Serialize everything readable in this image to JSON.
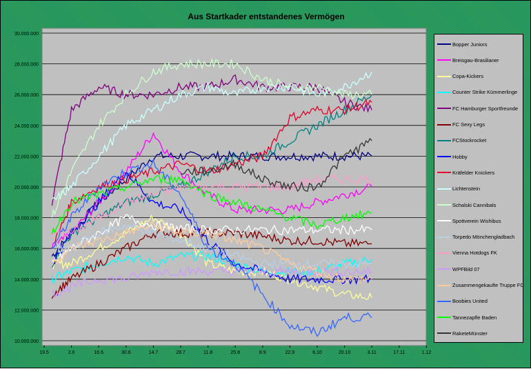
{
  "chart_data": {
    "type": "line",
    "title": "Aus Startkader entstandenes Vermögen",
    "xlabel": "",
    "ylabel": "",
    "ylim": [
      10000000,
      30000000
    ],
    "y_ticks": [
      "10.000.000",
      "12.000.000",
      "14.000.000",
      "16.000.000",
      "18.000.000",
      "20.000.000",
      "22.000.000",
      "24.000.000",
      "26.000.000",
      "28.000.000",
      "30.000.000"
    ],
    "x_ticks": [
      "19.5",
      "2.6",
      "16.6",
      "30.6",
      "14.7",
      "28.7",
      "11.8",
      "25.8",
      "8.9",
      "22.9",
      "6.10",
      "20.10",
      "3.11",
      "17.11",
      "1.12"
    ],
    "x_days": [
      4,
      14,
      28,
      42,
      56,
      70,
      84,
      98,
      112,
      126,
      140,
      154,
      168
    ],
    "grid": true,
    "legend_position": "right",
    "series": [
      {
        "name": "Bopper Juniors",
        "color": "#000080",
        "values": [
          15.5,
          17,
          19,
          20.5,
          22,
          22,
          22,
          22,
          22,
          22,
          22,
          22,
          22
        ]
      },
      {
        "name": "Breisgau-Brasilianer",
        "color": "#ff00ff",
        "values": [
          16,
          17,
          19,
          21,
          23.5,
          21,
          19.5,
          18.5,
          18.5,
          18.5,
          19,
          19.5,
          20
        ]
      },
      {
        "name": "Copa-Kickers",
        "color": "#ffff99",
        "values": [
          15,
          15,
          16,
          17,
          18,
          17,
          15,
          14.5,
          14.5,
          14,
          13.5,
          13,
          12.8
        ]
      },
      {
        "name": "Counter Strike Kümmerlinge",
        "color": "#00ffff",
        "values": [
          14,
          14.5,
          15,
          15.5,
          15,
          15.5,
          15.5,
          15,
          14.5,
          14.5,
          14.5,
          15,
          15.3
        ]
      },
      {
        "name": "FC Hamburger Sportfreunde",
        "color": "#800080",
        "values": [
          19,
          25,
          26.5,
          26,
          26,
          26.5,
          26.5,
          27,
          26.5,
          26.5,
          26.5,
          25.5,
          25
        ]
      },
      {
        "name": "FC Sexy Legs",
        "color": "#800000",
        "values": [
          13,
          14,
          15,
          16,
          17,
          17,
          17,
          17,
          16.8,
          16.5,
          16.5,
          16.3,
          16.3
        ]
      },
      {
        "name": "FCStockrocket",
        "color": "#008080",
        "values": [
          15,
          17,
          18,
          19,
          19.5,
          20,
          21,
          22,
          22,
          23,
          24,
          25,
          26
        ]
      },
      {
        "name": "Hobby",
        "color": "#0000ff",
        "values": [
          15,
          17,
          19,
          21,
          19,
          18.5,
          16.5,
          15,
          14.5,
          14,
          14,
          14,
          14
        ]
      },
      {
        "name": "Kräfelder Knickers",
        "color": "#e0002a",
        "values": [
          16,
          19,
          20,
          20.5,
          21,
          21.5,
          21,
          21.5,
          22,
          24.5,
          25,
          25,
          25.5
        ]
      },
      {
        "name": "Lichtenstein",
        "color": "#ccffff",
        "values": [
          19,
          20,
          22,
          24,
          25,
          26,
          26.5,
          26,
          26.5,
          26.5,
          26,
          26.5,
          27.5
        ]
      },
      {
        "name": "Schalski Cannibals",
        "color": "#ccffcc",
        "values": [
          18,
          21,
          24,
          26,
          27.5,
          28,
          28,
          28,
          27,
          26.5,
          26.5,
          26,
          26
        ]
      },
      {
        "name": "Spottverein Wishibus",
        "color": "#ffffff",
        "values": [
          15,
          16,
          17,
          18,
          17.5,
          17.3,
          17.2,
          17.2,
          17.2,
          17.2,
          17.2,
          17.2,
          17.2
        ]
      },
      {
        "name": "Torpedo Mönchengladbach",
        "color": "#b8d0e8",
        "values": [
          16,
          16,
          17,
          17.5,
          17,
          16.5,
          16,
          15.5,
          15,
          15,
          15,
          15,
          15
        ]
      },
      {
        "name": "Vienna Hotdogs FK",
        "color": "#ff99cc",
        "values": [
          17,
          17,
          18,
          19,
          19.5,
          20,
          20,
          20,
          20,
          20,
          20.5,
          20.5,
          20.5
        ]
      },
      {
        "name": "WPFBild 07",
        "color": "#cc99ff",
        "values": [
          13,
          13.5,
          14,
          14,
          14.5,
          14.5,
          14.5,
          14.5,
          14.5,
          14.5,
          14.5,
          14.5,
          14.5
        ]
      },
      {
        "name": "Zusammengekaufte Truppe FC",
        "color": "#ffcc99",
        "values": [
          15,
          16,
          16.5,
          17,
          17.5,
          17,
          17,
          16.5,
          16,
          15,
          14.5,
          14,
          14
        ]
      },
      {
        "name": "Boobies United",
        "color": "#3366ff",
        "values": [
          16,
          18,
          20,
          21,
          21.5,
          19.5,
          16,
          15,
          13,
          11,
          10.5,
          11.5,
          11.5
        ]
      },
      {
        "name": "Tannezapfle Baden",
        "color": "#00ff00",
        "values": [
          17,
          19,
          19.5,
          20,
          20.5,
          20.5,
          19.5,
          19,
          18.5,
          18,
          17.5,
          18,
          18.3
        ]
      },
      {
        "name": "RaketeMünster",
        "color": "#333333",
        "values": [
          null,
          null,
          null,
          null,
          null,
          21,
          21,
          21.5,
          20.5,
          20,
          20,
          22,
          23
        ]
      }
    ],
    "value_unit": "millions"
  }
}
